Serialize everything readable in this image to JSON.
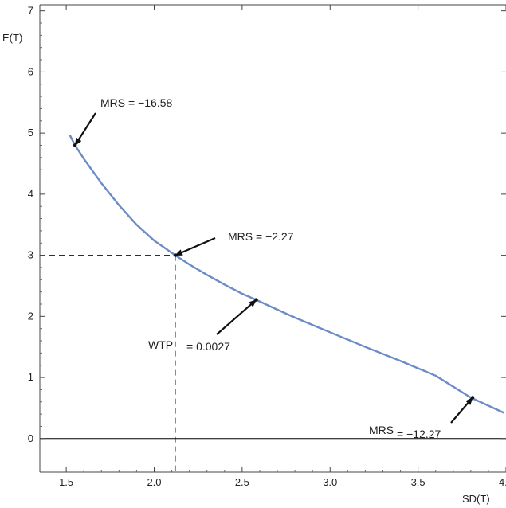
{
  "chart_data": {
    "type": "line",
    "title": "",
    "xlabel": "SD(T)",
    "ylabel": "E(T)",
    "xlim": [
      1.35,
      4.0
    ],
    "ylim": [
      -0.55,
      7.1
    ],
    "x_ticks": [
      1.5,
      2.0,
      2.5,
      3.0,
      3.5,
      4.0
    ],
    "x_tick_labels": [
      "1.5",
      "2.0",
      "2.5",
      "3.0",
      "3.5",
      "4.0"
    ],
    "y_ticks": [
      0,
      1,
      2,
      3,
      4,
      5,
      6,
      7
    ],
    "y_tick_labels": [
      "0",
      "1",
      "2",
      "3",
      "4",
      "5",
      "6",
      "7"
    ],
    "grid": false,
    "series": [
      {
        "color": "#6b8cc7",
        "x": [
          1.52,
          1.55,
          1.6,
          1.7,
          1.8,
          1.9,
          2.0,
          2.12,
          2.2,
          2.3,
          2.4,
          2.5,
          2.58,
          2.7,
          2.8,
          2.9,
          3.0,
          3.2,
          3.4,
          3.6,
          3.8,
          3.99
        ],
        "y": [
          4.97,
          4.8,
          4.58,
          4.18,
          3.82,
          3.5,
          3.24,
          3.0,
          2.85,
          2.68,
          2.52,
          2.37,
          2.27,
          2.11,
          1.98,
          1.86,
          1.74,
          1.5,
          1.27,
          1.03,
          0.67,
          0.42
        ]
      }
    ],
    "horizontal_line": {
      "y": 0,
      "color": "#000000"
    },
    "dashed_guides": {
      "x": 2.12,
      "y": 3.0
    },
    "annotations": [
      {
        "label": "MRS = −16.58",
        "point": [
          1.55,
          4.8
        ],
        "text_at": [
          1.68,
          5.5
        ]
      },
      {
        "label": "MRS = −2.27",
        "point": [
          2.12,
          3.0
        ],
        "text_at": [
          2.45,
          3.3
        ]
      },
      {
        "label": "WTP",
        "label2": "= 0.0027",
        "point": [
          2.58,
          2.27
        ],
        "text_at": [
          2.34,
          1.55
        ]
      },
      {
        "label": "MRS",
        "label2": "= −12.27",
        "point": [
          3.81,
          0.67
        ],
        "text_at": [
          3.72,
          0.3
        ]
      }
    ]
  }
}
